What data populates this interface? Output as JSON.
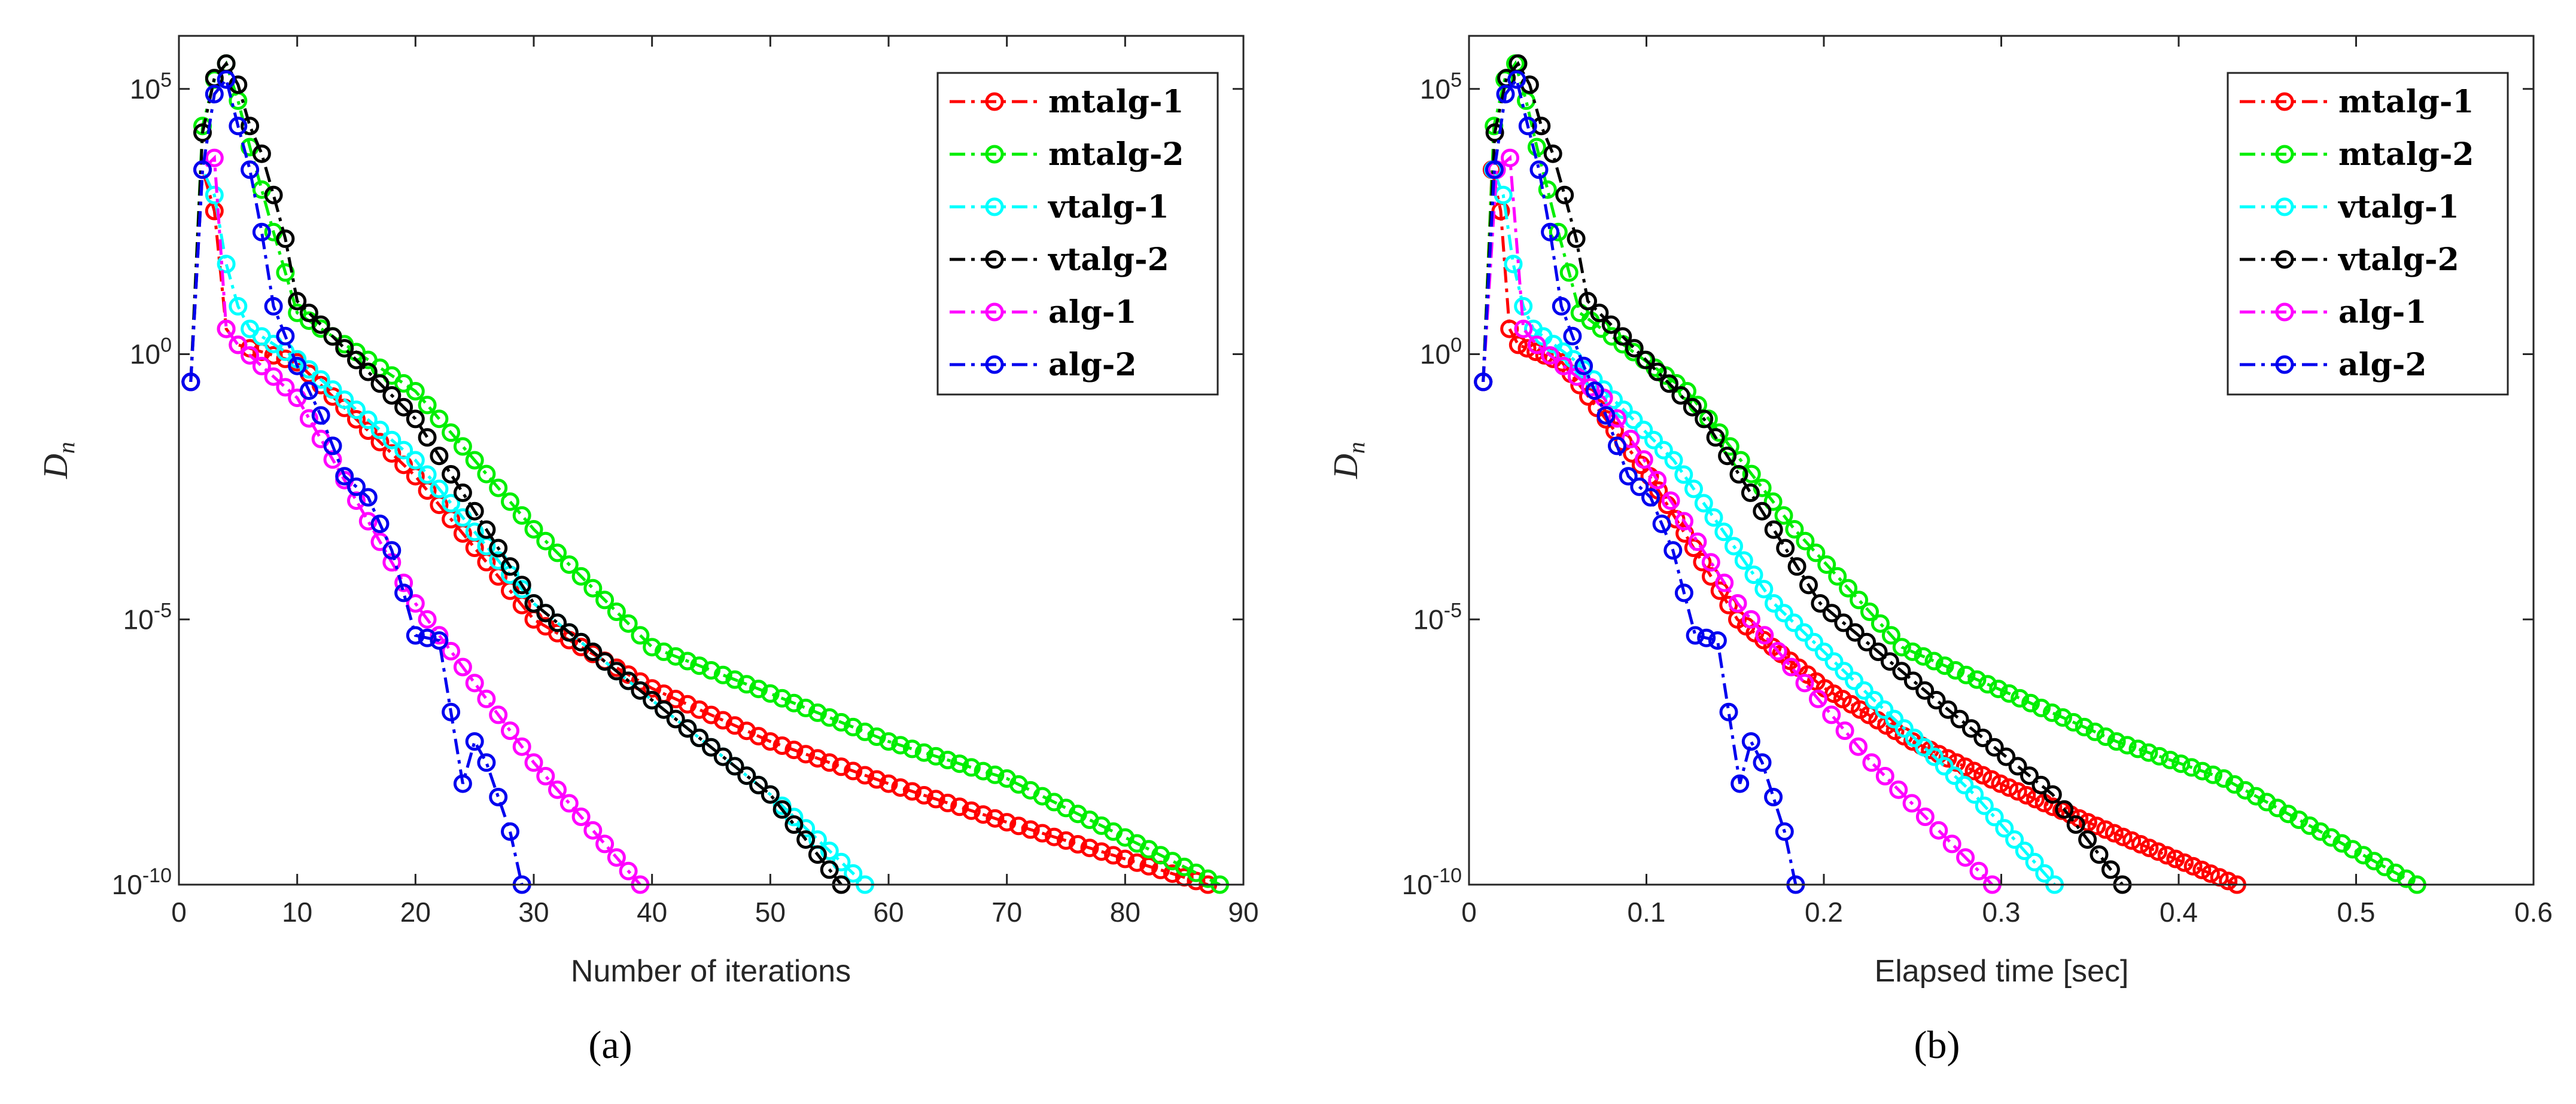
{
  "chart_data": [
    {
      "type": "line",
      "panel_label": "(a)",
      "xlabel": "Number of iterations",
      "ylabel": "D_n",
      "yscale": "log",
      "xlim": [
        0,
        90
      ],
      "ylim": [
        1e-10,
        1000000
      ],
      "xticks": [
        0,
        10,
        20,
        30,
        40,
        50,
        60,
        70,
        80,
        90
      ],
      "xticklabels": [
        "0",
        "10",
        "20",
        "30",
        "40",
        "50",
        "60",
        "70",
        "80",
        "90"
      ],
      "yticks": [
        1e-10,
        1e-05,
        1,
        100000
      ],
      "yticklabels": [
        "10^-10",
        "10^-5",
        "10^0",
        "10^5"
      ],
      "legend_location": "top-right",
      "grid": false,
      "series": [
        {
          "name": "mtalg-1",
          "color": "#ff0000",
          "x_start": 1,
          "x_step": 1,
          "knots": [
            [
              1,
              0.3
            ],
            [
              2,
              3000
            ],
            [
              3,
              500
            ],
            [
              4,
              3
            ],
            [
              5,
              1.5
            ],
            [
              10,
              0.7
            ],
            [
              20,
              0.005
            ],
            [
              30,
              1e-05
            ],
            [
              40,
              5e-07
            ],
            [
              50,
              5e-08
            ],
            [
              60,
              8e-09
            ],
            [
              70,
              1.5e-09
            ],
            [
              87,
              1e-10
            ]
          ]
        },
        {
          "name": "mtalg-2",
          "color": "#00ee00",
          "x_start": 1,
          "x_step": 1,
          "knots": [
            [
              1,
              0.3
            ],
            [
              2,
              20000
            ],
            [
              3,
              150000
            ],
            [
              4,
              300000
            ],
            [
              5,
              60000
            ],
            [
              6,
              8000
            ],
            [
              8,
              200
            ],
            [
              10,
              6
            ],
            [
              20,
              0.2
            ],
            [
              30,
              0.0005
            ],
            [
              40,
              3e-06
            ],
            [
              50,
              4e-07
            ],
            [
              60,
              5e-08
            ],
            [
              70,
              1e-08
            ],
            [
              88,
              1e-10
            ]
          ]
        },
        {
          "name": "vtalg-1",
          "color": "#00ffff",
          "x_start": 1,
          "x_step": 1,
          "knots": [
            [
              1,
              0.3
            ],
            [
              2,
              3000
            ],
            [
              3,
              1000
            ],
            [
              4,
              50
            ],
            [
              5,
              8
            ],
            [
              6,
              3
            ],
            [
              10,
              0.8
            ],
            [
              20,
              0.01
            ],
            [
              30,
              2e-05
            ],
            [
              40,
              3e-07
            ],
            [
              50,
              5e-09
            ],
            [
              58,
              1e-10
            ]
          ]
        },
        {
          "name": "vtalg-2",
          "color": "#000000",
          "x_start": 1,
          "x_step": 1,
          "knots": [
            [
              1,
              0.3
            ],
            [
              2,
              15000
            ],
            [
              3,
              160000
            ],
            [
              4,
              300000
            ],
            [
              5,
              120000
            ],
            [
              6,
              20000
            ],
            [
              7,
              6000
            ],
            [
              8,
              1000
            ],
            [
              9,
              150
            ],
            [
              10,
              10
            ],
            [
              20,
              0.06
            ],
            [
              30,
              2e-05
            ],
            [
              40,
              3e-07
            ],
            [
              50,
              5e-09
            ],
            [
              56,
              1e-10
            ]
          ]
        },
        {
          "name": "alg-1",
          "color": "#ff00ff",
          "x_start": 1,
          "x_step": 1,
          "knots": [
            [
              1,
              0.3
            ],
            [
              2,
              3000
            ],
            [
              3,
              5000
            ],
            [
              4,
              3
            ],
            [
              5,
              1.5
            ],
            [
              10,
              0.15
            ],
            [
              20,
              2e-05
            ],
            [
              30,
              2e-08
            ],
            [
              39,
              1e-10
            ]
          ]
        },
        {
          "name": "alg-2",
          "color": "#0000ee",
          "x_start": 1,
          "x_step": 1,
          "knots": [
            [
              1,
              0.3
            ],
            [
              2,
              3000
            ],
            [
              3,
              80000
            ],
            [
              4,
              150000
            ],
            [
              5,
              20000
            ],
            [
              6,
              3000
            ],
            [
              7,
              200
            ],
            [
              8,
              8
            ],
            [
              10,
              0.6
            ],
            [
              12,
              0.07
            ],
            [
              14,
              0.005
            ],
            [
              16,
              0.002
            ],
            [
              18,
              0.0002
            ],
            [
              20,
              5e-06
            ],
            [
              22,
              4e-06
            ],
            [
              24,
              8e-09
            ],
            [
              25,
              5e-08
            ],
            [
              26,
              2e-08
            ],
            [
              28,
              1e-09
            ],
            [
              29,
              1e-10
            ]
          ]
        }
      ]
    },
    {
      "type": "line",
      "panel_label": "(b)",
      "xlabel": "Elapsed time [sec]",
      "ylabel": "D_n",
      "yscale": "log",
      "xlim": [
        0,
        0.6
      ],
      "ylim": [
        1e-10,
        1000000
      ],
      "xticks": [
        0,
        0.1,
        0.2,
        0.3,
        0.4,
        0.5,
        0.6
      ],
      "xticklabels": [
        "0",
        "0.1",
        "0.2",
        "0.3",
        "0.4",
        "0.5",
        "0.6"
      ],
      "yticks": [
        1e-10,
        1e-05,
        1,
        100000
      ],
      "yticklabels": [
        "10^-10",
        "10^-5",
        "10^0",
        "10^5"
      ],
      "legend_location": "top-right",
      "grid": false,
      "series": [
        {
          "name": "mtalg-1",
          "color": "#ff0000",
          "x_start": 0.008,
          "x_step": 0.00494,
          "knots": [
            [
              1,
              0.3
            ],
            [
              2,
              3000
            ],
            [
              3,
              500
            ],
            [
              4,
              3
            ],
            [
              5,
              1.5
            ],
            [
              10,
              0.7
            ],
            [
              20,
              0.005
            ],
            [
              30,
              1e-05
            ],
            [
              40,
              5e-07
            ],
            [
              50,
              5e-08
            ],
            [
              60,
              8e-09
            ],
            [
              70,
              1.5e-09
            ],
            [
              87,
              1e-10
            ]
          ]
        },
        {
          "name": "mtalg-2",
          "color": "#00ee00",
          "x_start": 0.008,
          "x_step": 0.00605,
          "knots": [
            [
              1,
              0.3
            ],
            [
              2,
              20000
            ],
            [
              3,
              150000
            ],
            [
              4,
              300000
            ],
            [
              5,
              60000
            ],
            [
              6,
              8000
            ],
            [
              8,
              200
            ],
            [
              10,
              6
            ],
            [
              20,
              0.2
            ],
            [
              30,
              0.0005
            ],
            [
              40,
              3e-06
            ],
            [
              50,
              4e-07
            ],
            [
              60,
              5e-08
            ],
            [
              70,
              1e-08
            ],
            [
              88,
              1e-10
            ]
          ]
        },
        {
          "name": "vtalg-1",
          "color": "#00ffff",
          "x_start": 0.008,
          "x_step": 0.00565,
          "knots": [
            [
              1,
              0.3
            ],
            [
              2,
              3000
            ],
            [
              3,
              1000
            ],
            [
              4,
              50
            ],
            [
              5,
              8
            ],
            [
              6,
              3
            ],
            [
              10,
              0.8
            ],
            [
              20,
              0.01
            ],
            [
              30,
              2e-05
            ],
            [
              40,
              3e-07
            ],
            [
              50,
              5e-09
            ],
            [
              58,
              1e-10
            ]
          ]
        },
        {
          "name": "vtalg-2",
          "color": "#000000",
          "x_start": 0.008,
          "x_step": 0.00655,
          "knots": [
            [
              1,
              0.3
            ],
            [
              2,
              15000
            ],
            [
              3,
              160000
            ],
            [
              4,
              300000
            ],
            [
              5,
              120000
            ],
            [
              6,
              20000
            ],
            [
              7,
              6000
            ],
            [
              8,
              1000
            ],
            [
              9,
              150
            ],
            [
              10,
              10
            ],
            [
              20,
              0.06
            ],
            [
              30,
              2e-05
            ],
            [
              40,
              3e-07
            ],
            [
              50,
              5e-09
            ],
            [
              56,
              1e-10
            ]
          ]
        },
        {
          "name": "alg-1",
          "color": "#ff00ff",
          "x_start": 0.008,
          "x_step": 0.00755,
          "knots": [
            [
              1,
              0.3
            ],
            [
              2,
              3000
            ],
            [
              3,
              5000
            ],
            [
              4,
              3
            ],
            [
              5,
              1.5
            ],
            [
              10,
              0.15
            ],
            [
              20,
              2e-05
            ],
            [
              30,
              2e-08
            ],
            [
              39,
              1e-10
            ]
          ]
        },
        {
          "name": "alg-2",
          "color": "#0000ee",
          "x_start": 0.008,
          "x_step": 0.00629,
          "knots": [
            [
              1,
              0.3
            ],
            [
              2,
              3000
            ],
            [
              3,
              80000
            ],
            [
              4,
              150000
            ],
            [
              5,
              20000
            ],
            [
              6,
              3000
            ],
            [
              7,
              200
            ],
            [
              8,
              8
            ],
            [
              10,
              0.6
            ],
            [
              12,
              0.07
            ],
            [
              14,
              0.005
            ],
            [
              16,
              0.002
            ],
            [
              18,
              0.0002
            ],
            [
              20,
              5e-06
            ],
            [
              22,
              4e-06
            ],
            [
              24,
              8e-09
            ],
            [
              25,
              5e-08
            ],
            [
              26,
              2e-08
            ],
            [
              28,
              1e-09
            ],
            [
              29,
              1e-10
            ]
          ]
        }
      ]
    }
  ]
}
